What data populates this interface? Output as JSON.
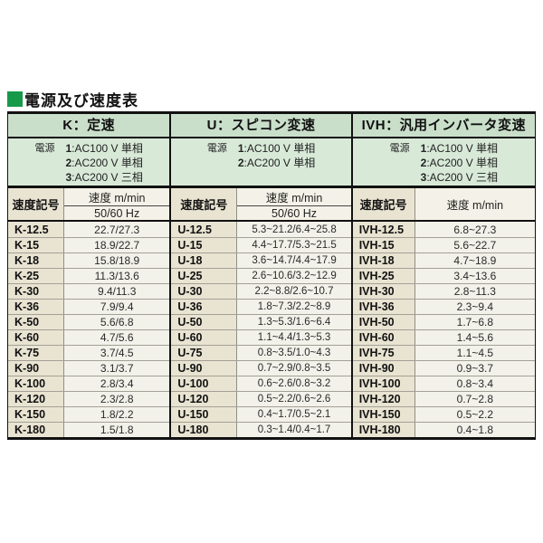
{
  "page_title": "電源及び速度表",
  "accent_color": "#169a4a",
  "table": {
    "subheader_code": "速度記号",
    "subheader_speed": "速度 m/min",
    "subheader_hz": "50/60 Hz",
    "groups": [
      {
        "id": "K",
        "title": "K：定速",
        "power_label": "電源",
        "power_lines": [
          "1:AC100 V 単相",
          "2:AC200 V 単相",
          "3:AC200 V 三相"
        ],
        "col_code": "速度記号",
        "col_speed": "速度 m/min",
        "col_speed_sub": "50/60 Hz",
        "rows": [
          [
            "K-12.5",
            "22.7/27.3"
          ],
          [
            "K-15",
            "18.9/22.7"
          ],
          [
            "K-18",
            "15.8/18.9"
          ],
          [
            "K-25",
            "11.3/13.6"
          ],
          [
            "K-30",
            "9.4/11.3"
          ],
          [
            "K-36",
            "7.9/9.4"
          ],
          [
            "K-50",
            "5.6/6.8"
          ],
          [
            "K-60",
            "4.7/5.6"
          ],
          [
            "K-75",
            "3.7/4.5"
          ],
          [
            "K-90",
            "3.1/3.7"
          ],
          [
            "K-100",
            "2.8/3.4"
          ],
          [
            "K-120",
            "2.3/2.8"
          ],
          [
            "K-150",
            "1.8/2.2"
          ],
          [
            "K-180",
            "1.5/1.8"
          ]
        ]
      },
      {
        "id": "U",
        "title": "U：スピコン変速",
        "power_label": "電源",
        "power_lines": [
          "1:AC100 V 単相",
          "2:AC200 V 単相"
        ],
        "col_code": "速度記号",
        "col_speed": "速度 m/min",
        "col_speed_sub": "50/60 Hz",
        "rows": [
          [
            "U-12.5",
            "5.3~21.2/6.4~25.8"
          ],
          [
            "U-15",
            "4.4~17.7/5.3~21.5"
          ],
          [
            "U-18",
            "3.6~14.7/4.4~17.9"
          ],
          [
            "U-25",
            "2.6~10.6/3.2~12.9"
          ],
          [
            "U-30",
            "2.2~8.8/2.6~10.7"
          ],
          [
            "U-36",
            "1.8~7.3/2.2~8.9"
          ],
          [
            "U-50",
            "1.3~5.3/1.6~6.4"
          ],
          [
            "U-60",
            "1.1~4.4/1.3~5.3"
          ],
          [
            "U-75",
            "0.8~3.5/1.0~4.3"
          ],
          [
            "U-90",
            "0.7~2.9/0.8~3.5"
          ],
          [
            "U-100",
            "0.6~2.6/0.8~3.2"
          ],
          [
            "U-120",
            "0.5~2.2/0.6~2.6"
          ],
          [
            "U-150",
            "0.4~1.7/0.5~2.1"
          ],
          [
            "U-180",
            "0.3~1.4/0.4~1.7"
          ]
        ]
      },
      {
        "id": "IVH",
        "title": "IVH：汎用インバータ変速",
        "power_label": "電源",
        "power_lines": [
          "1:AC100 V 単相",
          "2:AC200 V 単相",
          "3:AC200 V 三相"
        ],
        "col_code": "速度記号",
        "col_speed": "速度 m/min",
        "col_speed_sub": null,
        "rows": [
          [
            "IVH-12.5",
            "6.8~27.3"
          ],
          [
            "IVH-15",
            "5.6~22.7"
          ],
          [
            "IVH-18",
            "4.7~18.9"
          ],
          [
            "IVH-25",
            "3.4~13.6"
          ],
          [
            "IVH-30",
            "2.8~11.3"
          ],
          [
            "IVH-36",
            "2.3~9.4"
          ],
          [
            "IVH-50",
            "1.7~6.8"
          ],
          [
            "IVH-60",
            "1.4~5.6"
          ],
          [
            "IVH-75",
            "1.1~4.5"
          ],
          [
            "IVH-90",
            "0.9~3.7"
          ],
          [
            "IVH-100",
            "0.8~3.4"
          ],
          [
            "IVH-120",
            "0.7~2.8"
          ],
          [
            "IVH-150",
            "0.5~2.2"
          ],
          [
            "IVH-180",
            "0.4~1.8"
          ]
        ]
      }
    ]
  }
}
